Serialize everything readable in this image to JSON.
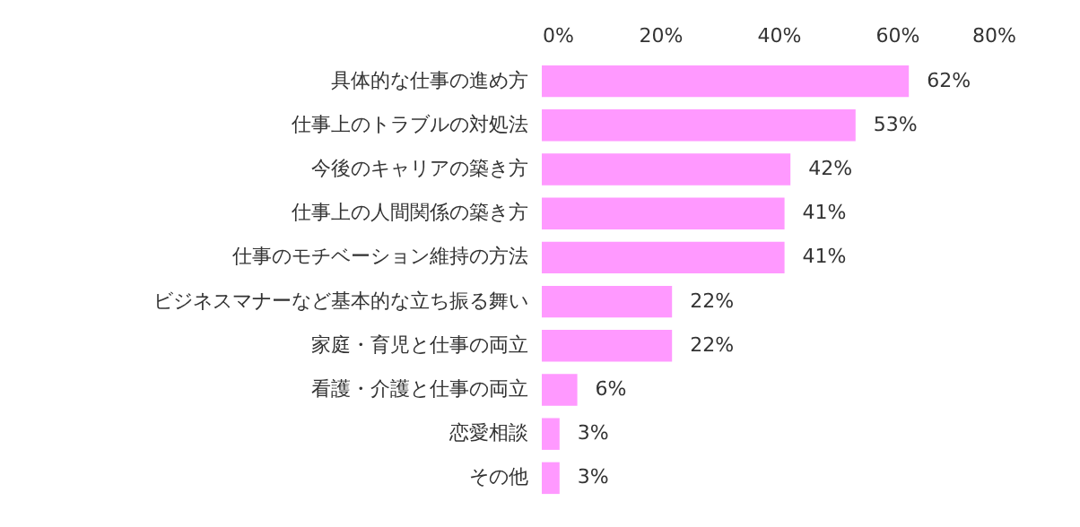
{
  "chart_data": {
    "type": "bar",
    "orientation": "horizontal",
    "categories": [
      "具体的な仕事の進め方",
      "仕事上のトラブルの対処法",
      "今後のキャリアの築き方",
      "仕事上の人間関係の築き方",
      "仕事のモチベーション維持の方法",
      "ビジネスマナーなど基本的な立ち振る舞い",
      "家庭・育児と仕事の両立",
      "看護・介護と仕事の両立",
      "恋愛相談",
      "その他"
    ],
    "values": [
      62,
      53,
      42,
      41,
      41,
      22,
      22,
      6,
      3,
      3
    ],
    "color": "#ff99ff",
    "xlim": [
      0,
      80
    ],
    "xticks": [
      {
        "value": 0,
        "label": "0%"
      },
      {
        "value": 20,
        "label": "20%"
      },
      {
        "value": 40,
        "label": "40%"
      },
      {
        "value": 60,
        "label": "60%"
      },
      {
        "value": 80,
        "label": "80%"
      }
    ],
    "value_labels": [
      "62%",
      "53%",
      "42%",
      "41%",
      "41%",
      "22%",
      "22%",
      "6%",
      "3%",
      "3%"
    ],
    "grid": false
  }
}
